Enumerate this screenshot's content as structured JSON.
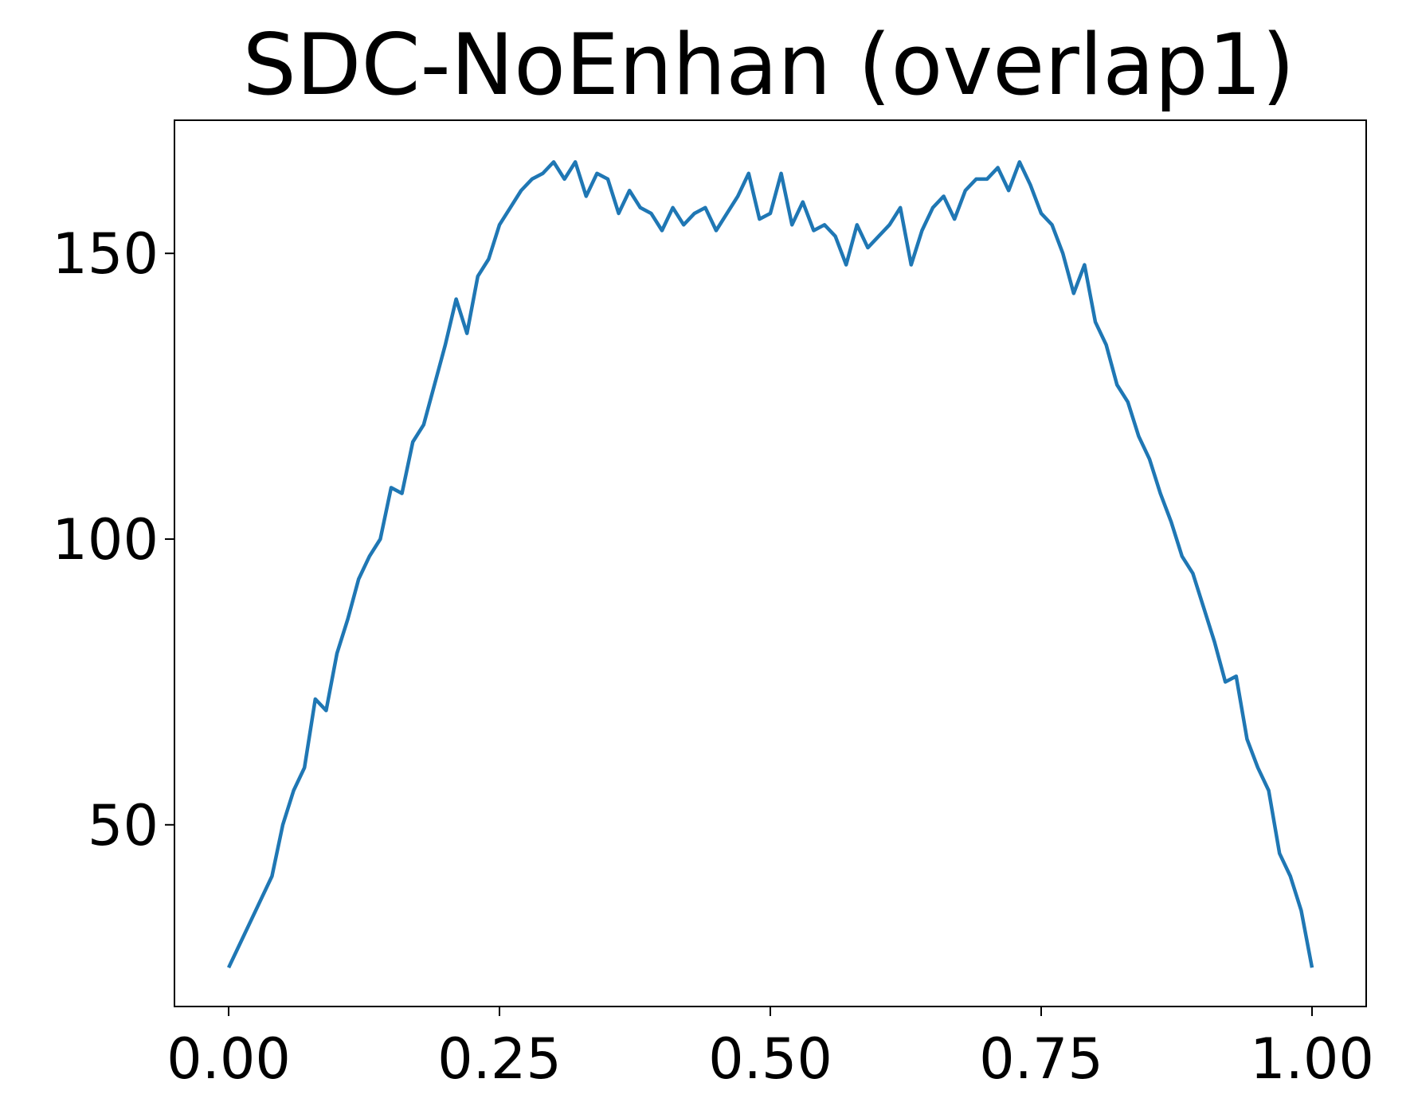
{
  "chart_data": {
    "type": "line",
    "title": "SDC-NoEnhan (overlap1)",
    "x": [
      0.0,
      0.01,
      0.02,
      0.03,
      0.04,
      0.05,
      0.06,
      0.07,
      0.08,
      0.09,
      0.1,
      0.11,
      0.12,
      0.13,
      0.14,
      0.15,
      0.16,
      0.17,
      0.18,
      0.19,
      0.2,
      0.21,
      0.22,
      0.23,
      0.24,
      0.25,
      0.26,
      0.27,
      0.28,
      0.29,
      0.3,
      0.31,
      0.32,
      0.33,
      0.34,
      0.35,
      0.36,
      0.37,
      0.38,
      0.39,
      0.4,
      0.41,
      0.42,
      0.43,
      0.44,
      0.45,
      0.46,
      0.47,
      0.48,
      0.49,
      0.5,
      0.51,
      0.52,
      0.53,
      0.54,
      0.55,
      0.56,
      0.57,
      0.58,
      0.59,
      0.6,
      0.61,
      0.62,
      0.63,
      0.64,
      0.65,
      0.66,
      0.67,
      0.68,
      0.69,
      0.7,
      0.71,
      0.72,
      0.73,
      0.74,
      0.75,
      0.76,
      0.77,
      0.78,
      0.79,
      0.8,
      0.81,
      0.82,
      0.83,
      0.84,
      0.85,
      0.86,
      0.87,
      0.88,
      0.89,
      0.9,
      0.91,
      0.92,
      0.93,
      0.94,
      0.95,
      0.96,
      0.97,
      0.98,
      0.99,
      1.0
    ],
    "series": [
      {
        "color": "#1f77b4",
        "values": [
          25,
          29,
          33,
          37,
          41,
          50,
          56,
          60,
          72,
          70,
          80,
          86,
          93,
          97,
          100,
          109,
          108,
          117,
          120,
          127,
          134,
          142,
          136,
          146,
          149,
          155,
          158,
          161,
          163,
          164,
          166,
          163,
          166,
          160,
          164,
          163,
          157,
          161,
          158,
          157,
          154,
          158,
          155,
          157,
          158,
          154,
          157,
          160,
          164,
          156,
          157,
          164,
          155,
          159,
          154,
          155,
          153,
          148,
          155,
          151,
          153,
          155,
          158,
          148,
          154,
          158,
          160,
          156,
          161,
          163,
          163,
          165,
          161,
          166,
          162,
          157,
          155,
          150,
          143,
          148,
          138,
          134,
          127,
          124,
          118,
          114,
          108,
          103,
          97,
          94,
          88,
          82,
          75,
          76,
          65,
          60,
          56,
          45,
          41,
          35,
          25
        ]
      }
    ],
    "xlim": [
      -0.05,
      1.05
    ],
    "ylim": [
      18.2,
      173.3
    ],
    "xticks": [
      {
        "value": 0,
        "label": "0.00"
      },
      {
        "value": 0.25,
        "label": "0.25"
      },
      {
        "value": 0.5,
        "label": "0.50"
      },
      {
        "value": 0.75,
        "label": "0.75"
      },
      {
        "value": 1,
        "label": "1.00"
      }
    ],
    "yticks": [
      50,
      100,
      150
    ]
  }
}
